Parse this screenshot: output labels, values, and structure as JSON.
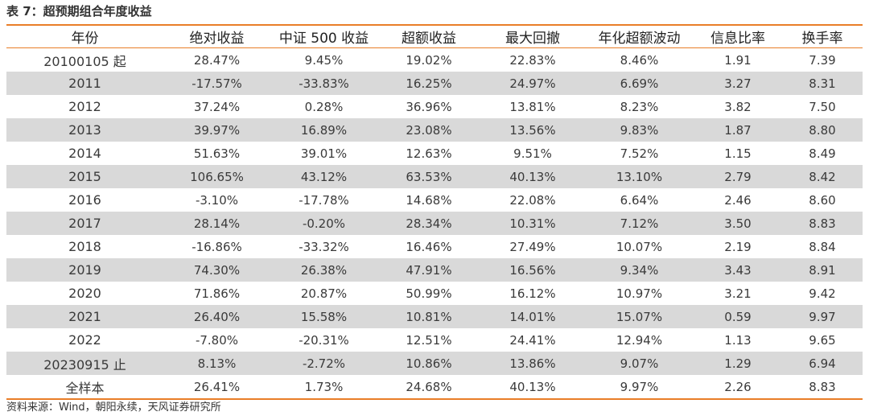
{
  "title": "表 7：超预期组合年度收益",
  "accent_color": "#E97E28",
  "stripe_color": "#D9D9D9",
  "columns": [
    "年份",
    "绝对收益",
    "中证 500 收益",
    "超额收益",
    "最大回撤",
    "年化超额波动",
    "信息比率",
    "换手率"
  ],
  "rows": [
    [
      "20100105 起",
      "28.47%",
      "9.45%",
      "19.02%",
      "22.83%",
      "8.46%",
      "1.91",
      "7.39"
    ],
    [
      "2011",
      "-17.57%",
      "-33.83%",
      "16.25%",
      "24.97%",
      "6.69%",
      "3.27",
      "8.31"
    ],
    [
      "2012",
      "37.24%",
      "0.28%",
      "36.96%",
      "13.81%",
      "8.23%",
      "3.82",
      "7.50"
    ],
    [
      "2013",
      "39.97%",
      "16.89%",
      "23.08%",
      "13.56%",
      "9.83%",
      "1.87",
      "8.80"
    ],
    [
      "2014",
      "51.63%",
      "39.01%",
      "12.63%",
      "9.51%",
      "7.52%",
      "1.15",
      "8.49"
    ],
    [
      "2015",
      "106.65%",
      "43.12%",
      "63.53%",
      "40.13%",
      "13.10%",
      "2.79",
      "8.42"
    ],
    [
      "2016",
      "-3.10%",
      "-17.78%",
      "14.68%",
      "22.08%",
      "6.64%",
      "2.46",
      "8.60"
    ],
    [
      "2017",
      "28.14%",
      "-0.20%",
      "28.34%",
      "10.31%",
      "7.12%",
      "3.50",
      "8.83"
    ],
    [
      "2018",
      "-16.86%",
      "-33.32%",
      "16.46%",
      "27.49%",
      "10.07%",
      "2.19",
      "8.84"
    ],
    [
      "2019",
      "74.30%",
      "26.38%",
      "47.91%",
      "16.56%",
      "9.34%",
      "3.43",
      "8.91"
    ],
    [
      "2020",
      "71.86%",
      "20.87%",
      "50.99%",
      "16.12%",
      "10.97%",
      "3.21",
      "9.42"
    ],
    [
      "2021",
      "26.40%",
      "15.58%",
      "10.81%",
      "14.01%",
      "15.07%",
      "0.59",
      "9.97"
    ],
    [
      "2022",
      "-7.80%",
      "-20.31%",
      "12.51%",
      "24.41%",
      "12.94%",
      "1.13",
      "9.65"
    ],
    [
      "20230915 止",
      "8.13%",
      "-2.72%",
      "10.86%",
      "13.86%",
      "9.07%",
      "1.29",
      "6.94"
    ],
    [
      "全样本",
      "26.41%",
      "1.73%",
      "24.68%",
      "40.13%",
      "9.97%",
      "2.26",
      "8.83"
    ]
  ],
  "source": "资料来源：Wind，朝阳永续，天风证券研究所"
}
